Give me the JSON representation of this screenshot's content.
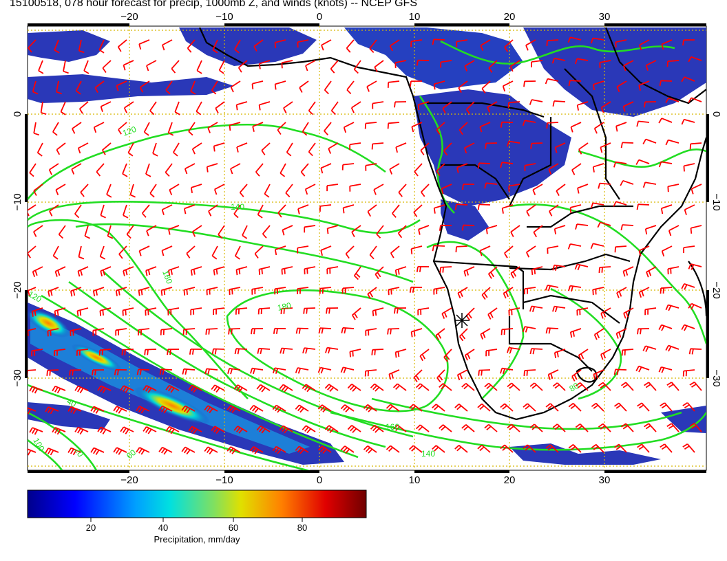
{
  "title": "15100518, 078 hour forecast for precip, 1000mb Z, and winds (knots) -- NCEP GFS",
  "map": {
    "lon_ticks": [
      "−20",
      "−10",
      "0",
      "10",
      "20",
      "30"
    ],
    "lat_ticks_left": [
      "0",
      "−10",
      "−20",
      "−30"
    ],
    "lat_ticks_right": [
      "0",
      "−10",
      "−20",
      "−30"
    ],
    "lon_range": [
      -30,
      40
    ],
    "lat_range": [
      -40,
      10
    ],
    "gridlines": "dotted, 10 degree",
    "contour_labels": [
      "120",
      "140",
      "160",
      "180",
      "160",
      "140",
      "120",
      "100",
      "80",
      "60",
      "40",
      "20"
    ],
    "colors": {
      "precip_low": "#1a1a9e",
      "precip_mid": "#00bcd4",
      "precip_high": "#e53935",
      "contours": "#22dd22",
      "wind_barbs": "#ff0000",
      "grid": "#d8b800",
      "coastline": "#000000"
    }
  },
  "colorbar": {
    "ticks": [
      "20",
      "40",
      "60",
      "80"
    ],
    "range": [
      0,
      100
    ],
    "label": "Precipitation, mm/day"
  }
}
